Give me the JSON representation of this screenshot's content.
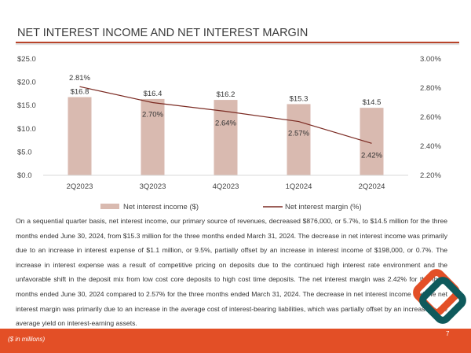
{
  "header": {
    "title": "NET INTEREST INCOME AND NET INTEREST MARGIN"
  },
  "chart_data": {
    "type": "bar",
    "categories": [
      "2Q2023",
      "3Q2023",
      "4Q2023",
      "1Q2024",
      "2Q2024"
    ],
    "series": [
      {
        "name": "Net interest income ($)",
        "type": "bar",
        "axis": "left",
        "values": [
          16.8,
          16.4,
          16.2,
          15.3,
          14.5
        ],
        "labels": [
          "$16.8",
          "$16.4",
          "$16.2",
          "$15.3",
          "$14.5"
        ],
        "color": "#d9bab0"
      },
      {
        "name": "Net interest margin (%)",
        "type": "line",
        "axis": "right",
        "values": [
          2.81,
          2.7,
          2.64,
          2.57,
          2.42
        ],
        "labels": [
          "2.81%",
          "2.70%",
          "2.64%",
          "2.57%",
          "2.42%"
        ],
        "color": "#7b2a22"
      }
    ],
    "left_axis": {
      "ylim": [
        0,
        25
      ],
      "ticks": [
        "$0.0",
        "$5.0",
        "$10.0",
        "$15.0",
        "$20.0",
        "$25.0"
      ]
    },
    "right_axis": {
      "ylim": [
        2.2,
        3.0
      ],
      "ticks": [
        "2.20%",
        "2.40%",
        "2.60%",
        "2.80%",
        "3.00%"
      ]
    },
    "grid": false,
    "legend": "bottom"
  },
  "body": {
    "paragraph": "On a sequential quarter basis, net interest income, our primary source of revenues, decreased $876,000, or 5.7%, to $14.5 million for the three months ended June 30, 2024, from $15.3 million for the three months ended March 31, 2024. The decrease in net interest income was primarily due to an increase in interest expense of $1.1 million, or 9.5%, partially offset by an increase in interest income of $198,000, or 0.7%. The increase in interest expense was a result of competitive pricing on deposits due to the continued high interest rate environment and the unfavorable shift in the deposit mix from low cost core deposits to high cost time deposits. The net interest margin was 2.42% for the three months ended June 30, 2024 compared to 2.57% for the three months ended March 31, 2024. The decrease in net interest income and the net interest margin was primarily due to an increase in the average cost of interest-bearing liabilities, which was partially offset by an increase in the average yield on interest-earning assets."
  },
  "footer": {
    "units": "($ in millions)",
    "page": "7"
  },
  "colors": {
    "accent": "#e34f26",
    "teal": "#0f5a5c"
  }
}
